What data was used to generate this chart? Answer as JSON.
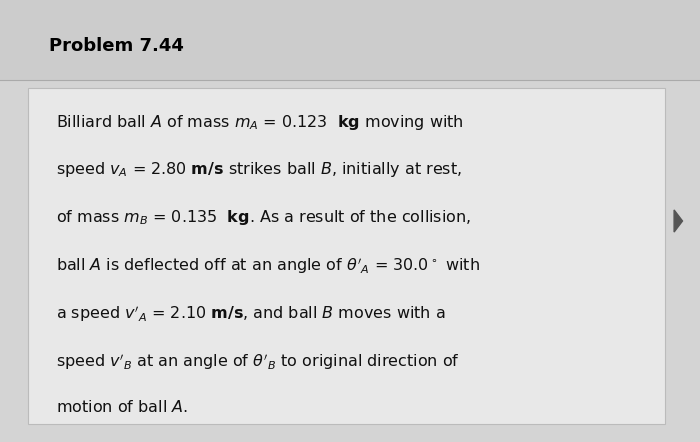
{
  "title": "Problem 7.44",
  "background_outer": "#d4d4d4",
  "background_title": "#cccccc",
  "background_inner": "#e8e8e8",
  "title_fontsize": 13,
  "body_fontsize": 11.5,
  "title_color": "#000000",
  "text_color": "#111111",
  "lines": [
    "Billiard ball $\\mathit{A}$ of mass $m_A$ = 0.123  $\\bf{kg}$ moving with",
    "speed $v_A$ = 2.80 $\\bf{m/s}$ strikes ball $\\mathit{B}$, initially at rest,",
    "of mass $m_B$ = 0.135  $\\bf{kg}$. As a result of the collision,",
    "ball $\\mathit{A}$ is deflected off at an angle of $\\theta'_A$ = 30.0$^\\circ$ with",
    "a speed $v'_A$ = 2.10 $\\bf{m/s}$, and ball $\\mathit{B}$ moves with a",
    "speed $v'_B$ at an angle of $\\theta'_B$ to original direction of",
    "motion of ball $\\mathit{A}$."
  ]
}
